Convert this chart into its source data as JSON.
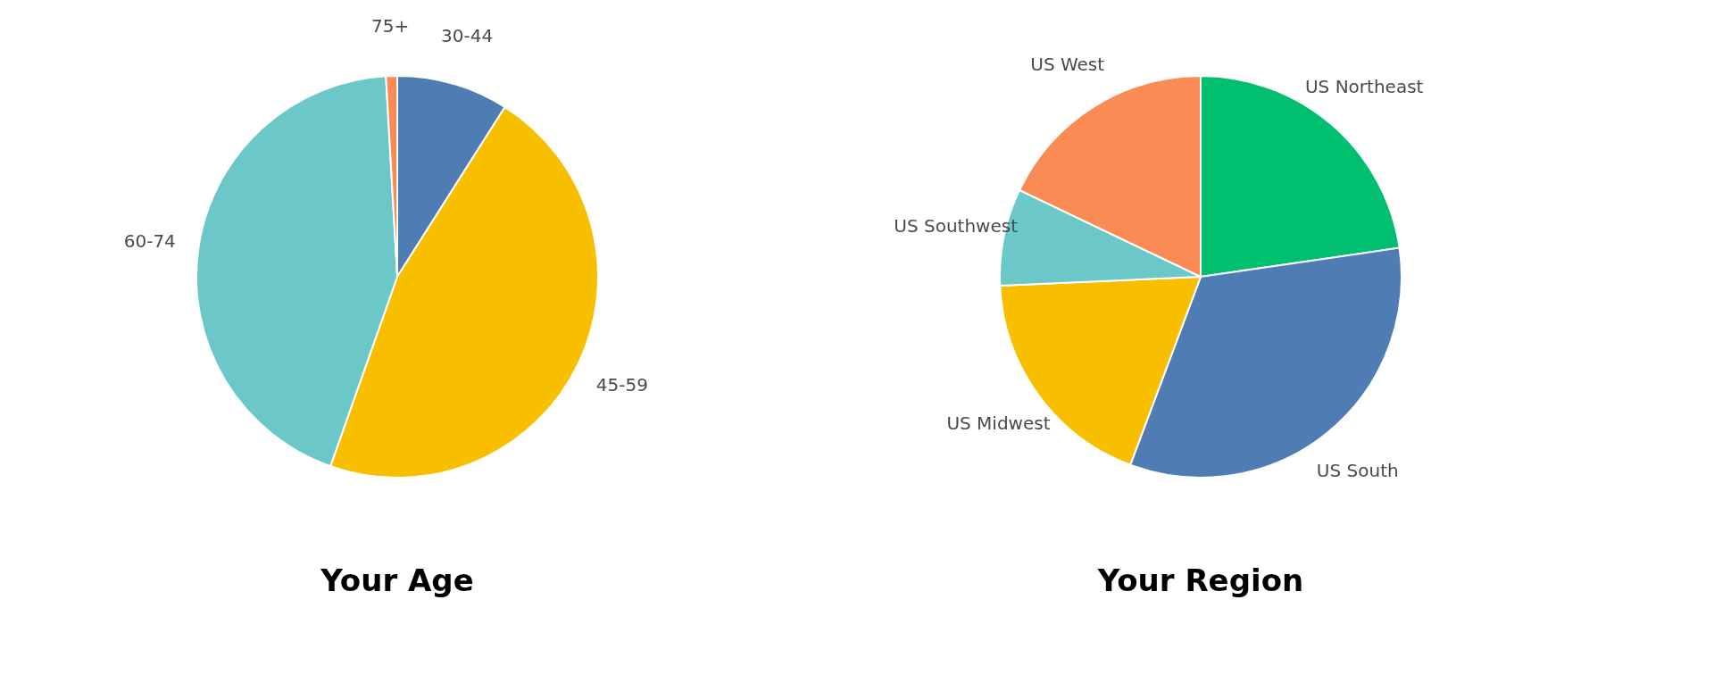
{
  "chart_data": [
    {
      "type": "pie",
      "title": "Your Age",
      "categories": [
        "30-44",
        "45-59",
        "60-74",
        "75+"
      ],
      "values": [
        9,
        46.4,
        43.7,
        0.9
      ],
      "colors": [
        "#4f7cb3",
        "#f7bf00",
        "#6cc7c9",
        "#fb8b54"
      ]
    },
    {
      "type": "pie",
      "title": "Your Region",
      "categories": [
        "US Northeast",
        "US South",
        "US Midwest",
        "US Southwest",
        "US West"
      ],
      "values": [
        22.7,
        33.0,
        18.6,
        7.8,
        17.9
      ],
      "colors": [
        "#00bf6f",
        "#4f7cb3",
        "#f7bf00",
        "#6cc7c9",
        "#fb8b54"
      ]
    }
  ]
}
